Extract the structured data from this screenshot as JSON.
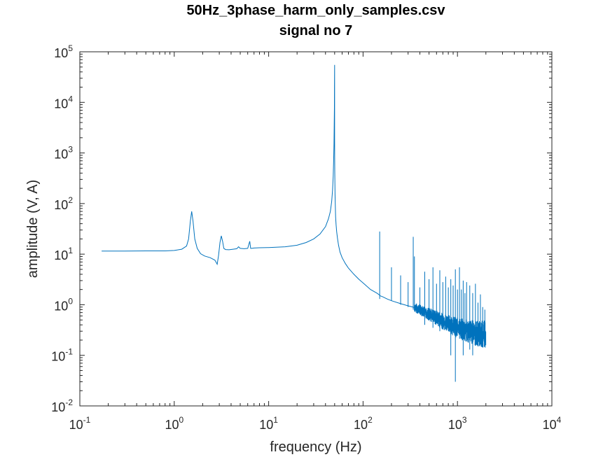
{
  "chart_data": {
    "type": "line",
    "title": "50Hz_3phase_harm_only_samples.csv",
    "subtitle": "signal no 7",
    "xlabel": "frequency (Hz)",
    "ylabel": "amplitude (V, A)",
    "xscale": "log",
    "yscale": "log",
    "xlim": [
      0.1,
      10000
    ],
    "ylim": [
      0.01,
      100000
    ],
    "x_ticks": [
      {
        "base": "10",
        "exp": "-1",
        "value": 0.1
      },
      {
        "base": "10",
        "exp": "0",
        "value": 1
      },
      {
        "base": "10",
        "exp": "1",
        "value": 10
      },
      {
        "base": "10",
        "exp": "2",
        "value": 100
      },
      {
        "base": "10",
        "exp": "3",
        "value": 1000
      },
      {
        "base": "10",
        "exp": "4",
        "value": 10000
      }
    ],
    "y_ticks": [
      {
        "base": "10",
        "exp": "-2",
        "value": 0.01
      },
      {
        "base": "10",
        "exp": "-1",
        "value": 0.1
      },
      {
        "base": "10",
        "exp": "0",
        "value": 1
      },
      {
        "base": "10",
        "exp": "1",
        "value": 10
      },
      {
        "base": "10",
        "exp": "2",
        "value": 100
      },
      {
        "base": "10",
        "exp": "3",
        "value": 1000
      },
      {
        "base": "10",
        "exp": "4",
        "value": 10000
      },
      {
        "base": "10",
        "exp": "5",
        "value": 100000
      }
    ],
    "grid": false,
    "series": [
      {
        "color": "#0072bd",
        "x": [
          0.17,
          0.3,
          0.5,
          0.8,
          1.0,
          1.2,
          1.35,
          1.42,
          1.48,
          1.53,
          1.58,
          1.65,
          1.75,
          1.9,
          2.1,
          2.4,
          2.7,
          2.85,
          2.95,
          3.05,
          3.15,
          3.25,
          3.35,
          3.5,
          3.8,
          4.2,
          4.6,
          4.8,
          5.0,
          5.5,
          6.0,
          6.3,
          6.45,
          6.6,
          7,
          8,
          10,
          15,
          20,
          25,
          30,
          35,
          40,
          43,
          45,
          46.5,
          47.5,
          48.3,
          48.8,
          49.2,
          49.5,
          49.7,
          49.85,
          49.95,
          50.0,
          50.05,
          50.15,
          50.3,
          50.5,
          50.8,
          51.2,
          51.8,
          52.5,
          53.5,
          55,
          57,
          60,
          65,
          70,
          80,
          90,
          100,
          120,
          140,
          150,
          152,
          160,
          180,
          200,
          250,
          300,
          350,
          400,
          500,
          600,
          700,
          800,
          900,
          1000,
          1200,
          1400,
          1600,
          1800,
          2000
        ],
        "values": [
          11.5,
          11.5,
          11.6,
          11.6,
          11.8,
          12.5,
          14.5,
          20,
          45,
          70,
          45,
          20,
          13,
          10.2,
          9.2,
          8.5,
          7.6,
          6.3,
          9.5,
          17,
          23,
          18,
          13,
          12.3,
          12.2,
          12.5,
          12.8,
          14,
          13,
          12.8,
          13,
          18,
          13,
          13,
          13.2,
          13.4,
          13.5,
          14,
          15,
          17,
          20,
          25,
          35,
          50,
          70,
          110,
          180,
          350,
          700,
          1500,
          3500,
          8000,
          20000,
          55000,
          2000,
          800,
          450,
          250,
          150,
          90,
          55,
          38,
          28,
          21,
          15,
          11,
          8.5,
          6.5,
          5.3,
          4,
          3.2,
          2.7,
          2.0,
          1.7,
          1.55,
          1.5,
          1.45,
          1.3,
          1.2,
          1.05,
          0.95,
          0.88,
          0.8,
          0.65,
          0.55,
          0.47,
          0.42,
          0.38,
          0.35,
          0.31,
          0.29,
          0.27,
          0.26,
          0.26
        ],
        "spikes": [
          {
            "x": 150,
            "top": 28,
            "bottom": 1.3
          },
          {
            "x": 200,
            "top": 5.5,
            "bottom": 1.2
          },
          {
            "x": 250,
            "top": 3.8,
            "bottom": 1.0
          },
          {
            "x": 300,
            "top": 2.8,
            "bottom": 0.9
          },
          {
            "x": 340,
            "top": 22,
            "bottom": 0.8
          },
          {
            "x": 350,
            "top": 9,
            "bottom": 0.75
          },
          {
            "x": 400,
            "top": 2.2,
            "bottom": 0.7
          },
          {
            "x": 450,
            "top": 4.5,
            "bottom": 0.4
          },
          {
            "x": 500,
            "top": 3.2,
            "bottom": 0.6
          },
          {
            "x": 550,
            "top": 5.5,
            "bottom": 0.35
          },
          {
            "x": 600,
            "top": 2.6,
            "bottom": 0.5
          },
          {
            "x": 650,
            "top": 4.8,
            "bottom": 0.3
          },
          {
            "x": 700,
            "top": 2.8,
            "bottom": 0.45
          },
          {
            "x": 750,
            "top": 3.6,
            "bottom": 0.4
          },
          {
            "x": 800,
            "top": 2.2,
            "bottom": 0.42
          },
          {
            "x": 850,
            "top": 3.2,
            "bottom": 0.1
          },
          {
            "x": 900,
            "top": 2.4,
            "bottom": 0.38
          },
          {
            "x": 950,
            "top": 5.0,
            "bottom": 0.03
          },
          {
            "x": 1000,
            "top": 2.0,
            "bottom": 0.35
          },
          {
            "x": 1050,
            "top": 5.5,
            "bottom": 0.33
          },
          {
            "x": 1100,
            "top": 2.0,
            "bottom": 0.32
          },
          {
            "x": 1150,
            "top": 3.0,
            "bottom": 0.1
          },
          {
            "x": 1200,
            "top": 1.7,
            "bottom": 0.31
          },
          {
            "x": 1250,
            "top": 2.8,
            "bottom": 0.3
          },
          {
            "x": 1350,
            "top": 2.4,
            "bottom": 0.13
          },
          {
            "x": 1450,
            "top": 1.7,
            "bottom": 0.1
          },
          {
            "x": 1550,
            "top": 2.6,
            "bottom": 0.28
          },
          {
            "x": 1650,
            "top": 1.1,
            "bottom": 0.15
          },
          {
            "x": 1750,
            "top": 1.6,
            "bottom": 0.27
          },
          {
            "x": 1850,
            "top": 0.9,
            "bottom": 0.15
          },
          {
            "x": 1950,
            "top": 0.8,
            "bottom": 0.18
          }
        ]
      }
    ]
  }
}
